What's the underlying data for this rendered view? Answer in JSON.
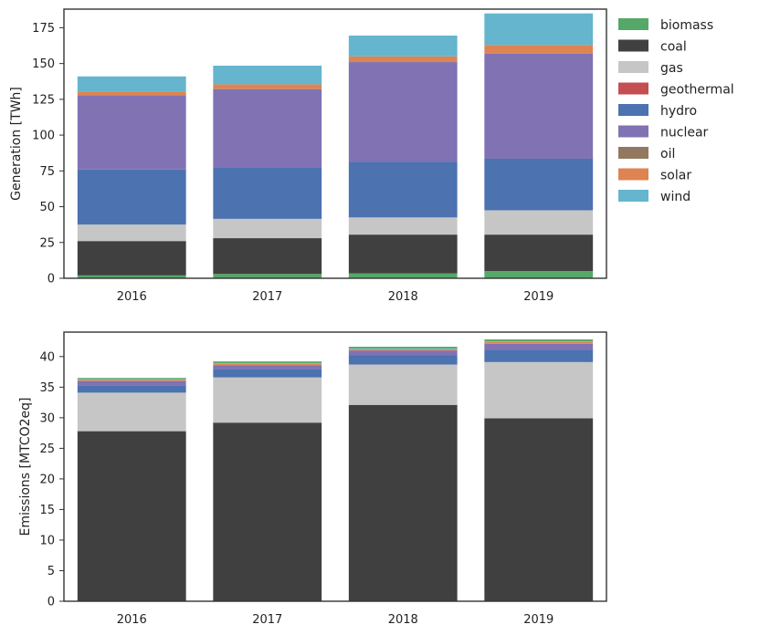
{
  "chart_data": [
    {
      "type": "bar",
      "stacked": true,
      "categories": [
        "2016",
        "2017",
        "2018",
        "2019"
      ],
      "ylabel": "Generation [TWh]",
      "xlabel": "",
      "ylim": [
        0,
        188
      ],
      "yticks": [
        0,
        25,
        50,
        75,
        100,
        125,
        150,
        175
      ],
      "legend_position": "outside-right",
      "series": [
        {
          "name": "biomass",
          "color": "#55a868",
          "values": [
            2,
            3,
            3.5,
            5
          ]
        },
        {
          "name": "coal",
          "color": "#404040",
          "values": [
            24,
            25,
            27,
            25.5
          ]
        },
        {
          "name": "gas",
          "color": "#c6c6c6",
          "values": [
            11.5,
            13.5,
            12,
            17
          ]
        },
        {
          "name": "geothermal",
          "color": "#c44e52",
          "values": [
            0,
            0,
            0,
            0
          ]
        },
        {
          "name": "hydro",
          "color": "#4c72b0",
          "values": [
            38.5,
            36,
            39,
            36
          ]
        },
        {
          "name": "nuclear",
          "color": "#8172b3",
          "values": [
            51.5,
            54.5,
            69.5,
            73.5
          ]
        },
        {
          "name": "oil",
          "color": "#937860",
          "values": [
            0.3,
            0.3,
            0.3,
            0.3
          ]
        },
        {
          "name": "solar",
          "color": "#dd8452",
          "values": [
            2.7,
            3.2,
            3.7,
            5.7
          ]
        },
        {
          "name": "wind",
          "color": "#64b5cd",
          "values": [
            10.5,
            13,
            14.5,
            22
          ]
        }
      ]
    },
    {
      "type": "bar",
      "stacked": true,
      "categories": [
        "2016",
        "2017",
        "2018",
        "2019"
      ],
      "ylabel": "Emissions [MTCO2eq]",
      "xlabel": "",
      "ylim": [
        0,
        44
      ],
      "yticks": [
        0,
        5,
        10,
        15,
        20,
        25,
        30,
        35,
        40
      ],
      "series": [
        {
          "name": "coal",
          "color": "#404040",
          "values": [
            27.8,
            29.2,
            32.1,
            29.9
          ]
        },
        {
          "name": "gas",
          "color": "#c6c6c6",
          "values": [
            6.3,
            7.4,
            6.6,
            9.2
          ]
        },
        {
          "name": "hydro",
          "color": "#4c72b0",
          "values": [
            1.2,
            1.4,
            1.5,
            2.0
          ]
        },
        {
          "name": "nuclear",
          "color": "#8172b3",
          "values": [
            0.7,
            0.6,
            0.8,
            1.0
          ]
        },
        {
          "name": "solar",
          "color": "#dd8452",
          "values": [
            0.2,
            0.2,
            0.2,
            0.3
          ]
        },
        {
          "name": "wind",
          "color": "#64b5cd",
          "values": [
            0.1,
            0.1,
            0.1,
            0.1
          ]
        },
        {
          "name": "biomass",
          "color": "#55a868",
          "values": [
            0.2,
            0.3,
            0.3,
            0.3
          ]
        }
      ]
    }
  ]
}
